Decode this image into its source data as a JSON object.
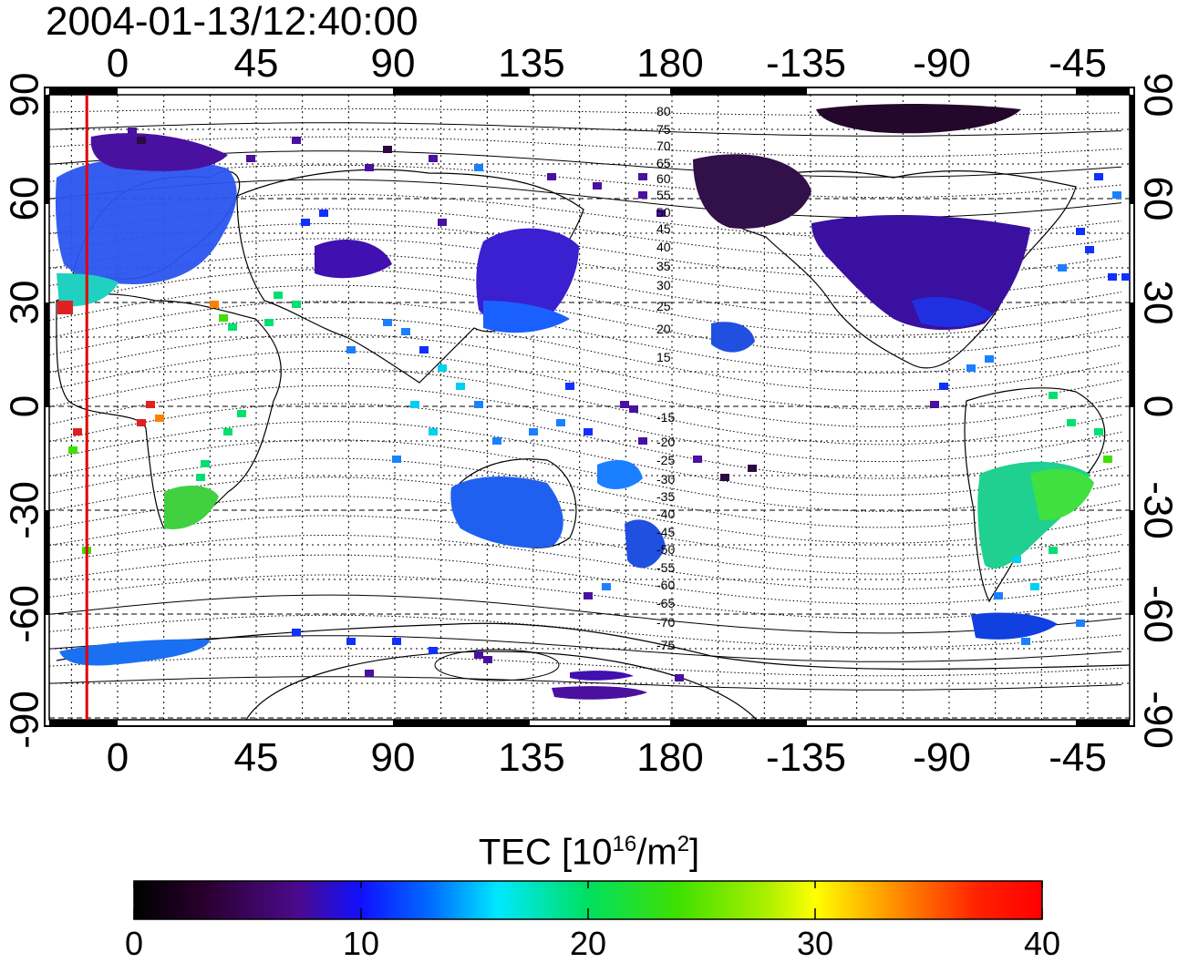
{
  "title": "2004-01-13/12:40:00",
  "top_lon_labels": [
    "0",
    "45",
    "90",
    "135",
    "180",
    "-135",
    "-90",
    "-45"
  ],
  "bottom_lon_labels": [
    "0",
    "45",
    "90",
    "135",
    "180",
    "-135",
    "-90",
    "-45"
  ],
  "left_lat_labels": [
    "90",
    "60",
    "30",
    "0",
    "-30",
    "-60",
    "-90"
  ],
  "right_lat_labels": [
    "90",
    "60",
    "30",
    "0",
    "-30",
    "-60",
    "-90"
  ],
  "contour_labels_upper": [
    "80",
    "75",
    "70",
    "65",
    "60",
    "55",
    "50",
    "45",
    "40",
    "35",
    "30",
    "25",
    "20",
    "15"
  ],
  "contour_labels_lower": [
    "-15",
    "-20",
    "-25",
    "-30",
    "-35",
    "-40",
    "-45",
    "-50",
    "-55",
    "-60",
    "-65",
    "-70",
    "-75"
  ],
  "colorbar": {
    "title_main": "TEC  [10",
    "title_exp": "16",
    "title_mid": "/m",
    "title_exp2": "2",
    "title_end": "]",
    "ticks": [
      "0",
      "10",
      "20",
      "30",
      "40"
    ],
    "min": 0,
    "max": 40
  },
  "red_line_longitude": -10,
  "colors": {
    "red_line": "#e00000",
    "grid": "#000000"
  }
}
